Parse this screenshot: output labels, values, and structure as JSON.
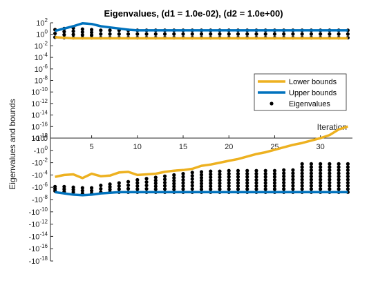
{
  "chart_data": {
    "type": "line",
    "title": "Eigenvalues, (d1 = 1.0e-02), (d2 = 1.0e+00)",
    "xlabel": "Iteration",
    "ylabel": "Eigenvalues and bounds",
    "xlim": [
      0.5,
      33.5
    ],
    "x_ticks": [
      5,
      10,
      15,
      20,
      25,
      30
    ],
    "y_positive_ticks": [
      "10^2",
      "10^0",
      "10^-2",
      "10^-4",
      "10^-6",
      "10^-8",
      "10^-10",
      "10^-12",
      "10^-14",
      "10^-16",
      "10^-18"
    ],
    "y_zero_tick": "0",
    "y_negative_ticks": [
      "-10^-18",
      "-10^-16",
      "-10^-14",
      "-10^-12",
      "-10^-10",
      "-10^-8",
      "-10^-6",
      "-10^-4",
      "-10^-2",
      "-10^0",
      "-10^2"
    ],
    "y_scale": "symmetric-log (positive branch above 0, negative branch below 0)",
    "legend": {
      "placement": "right",
      "entries": [
        "Lower bounds",
        "Upper bounds",
        "Eigenvalues"
      ]
    },
    "colors": {
      "lower": "#EDB120",
      "upper": "#0072BD",
      "eig": "#000000"
    },
    "series": [
      {
        "name": "Lower bounds",
        "x": [
          1,
          2,
          3,
          4,
          5,
          6,
          7,
          8,
          9,
          10,
          11,
          12,
          13,
          14,
          15,
          16,
          17,
          18,
          19,
          20,
          21,
          22,
          23,
          24,
          25,
          26,
          27,
          28,
          29,
          30,
          31,
          32,
          33
        ],
        "positive_log10": [
          -0.5,
          -0.6,
          -0.7,
          -0.7,
          -0.7,
          -0.7,
          -0.7,
          -0.7,
          -0.7,
          -0.7,
          -0.7,
          -0.7,
          -0.7,
          -0.7,
          -0.7,
          -0.7,
          -0.7,
          -0.7,
          -0.7,
          -0.7,
          -0.7,
          -0.7,
          -0.7,
          -0.7,
          -0.7,
          -0.7,
          -0.7,
          -0.7,
          -0.7,
          -0.7,
          -0.7,
          -0.7,
          -0.7
        ],
        "negative_log10": [
          -4.3,
          -4.0,
          -3.9,
          -4.5,
          -3.8,
          -4.2,
          -4.1,
          -3.6,
          -3.5,
          -4.0,
          -3.9,
          -3.8,
          -3.5,
          -3.3,
          -3.2,
          -3.0,
          -2.5,
          -2.3,
          -2.0,
          -1.7,
          -1.4,
          -1.0,
          -0.6,
          -0.3,
          0.1,
          0.5,
          0.9,
          1.2,
          1.6,
          2.0,
          2.5,
          3.4,
          3.9
        ]
      },
      {
        "name": "Upper bounds",
        "x": [
          1,
          2,
          3,
          4,
          5,
          6,
          7,
          8,
          9,
          10,
          11,
          12,
          13,
          14,
          15,
          16,
          17,
          18,
          19,
          20,
          21,
          22,
          23,
          24,
          25,
          26,
          27,
          28,
          29,
          30,
          31,
          32,
          33
        ],
        "positive_log10": [
          0.6,
          1.0,
          1.4,
          1.9,
          1.8,
          1.4,
          1.2,
          1.0,
          0.8,
          0.7,
          0.7,
          0.7,
          0.7,
          0.7,
          0.7,
          0.7,
          0.7,
          0.7,
          0.7,
          0.7,
          0.7,
          0.7,
          0.7,
          0.7,
          0.7,
          0.7,
          0.7,
          0.7,
          0.7,
          0.7,
          0.7,
          0.7,
          0.7
        ],
        "negative_log10": [
          -6.8,
          -7.0,
          -7.2,
          -7.3,
          -7.2,
          -7.0,
          -6.9,
          -6.8,
          -6.8,
          -6.8,
          -6.8,
          -6.8,
          -6.8,
          -6.8,
          -6.8,
          -6.8,
          -6.8,
          -6.8,
          -6.8,
          -6.8,
          -6.8,
          -6.8,
          -6.8,
          -6.8,
          -6.8,
          -6.8,
          -6.8,
          -6.8,
          -6.8,
          -6.8,
          -6.8,
          -6.8,
          -6.8
        ]
      },
      {
        "name": "Eigenvalues",
        "x": [
          1,
          2,
          3,
          4,
          5,
          6,
          7,
          8,
          9,
          10,
          11,
          12,
          13,
          14,
          15,
          16,
          17,
          18,
          19,
          20,
          21,
          22,
          23,
          24,
          25,
          26,
          27,
          28,
          29,
          30,
          31,
          32,
          33
        ],
        "positive_log10_range": [
          [
            -0.5,
            0.8
          ],
          [
            -0.6,
            1.0
          ],
          [
            -0.6,
            1.1
          ],
          [
            -0.6,
            0.9
          ],
          [
            -0.6,
            0.8
          ],
          [
            -0.6,
            0.7
          ],
          [
            -0.6,
            0.7
          ],
          [
            -0.6,
            0.7
          ],
          [
            -0.6,
            0.7
          ],
          [
            -0.6,
            0.7
          ],
          [
            -0.6,
            0.7
          ],
          [
            -0.6,
            0.7
          ],
          [
            -0.6,
            0.7
          ],
          [
            -0.6,
            0.7
          ],
          [
            -0.6,
            0.7
          ],
          [
            -0.6,
            0.7
          ],
          [
            -0.6,
            0.7
          ],
          [
            -0.6,
            0.7
          ],
          [
            -0.6,
            0.7
          ],
          [
            -0.6,
            0.7
          ],
          [
            -0.6,
            0.7
          ],
          [
            -0.6,
            0.7
          ],
          [
            -0.6,
            0.7
          ],
          [
            -0.6,
            0.7
          ],
          [
            -0.6,
            0.7
          ],
          [
            -0.6,
            0.7
          ],
          [
            -0.6,
            0.7
          ],
          [
            -0.6,
            0.7
          ],
          [
            -0.6,
            0.7
          ],
          [
            -0.6,
            0.7
          ],
          [
            -0.6,
            0.7
          ],
          [
            -0.6,
            0.7
          ],
          [
            -0.6,
            0.7
          ]
        ],
        "negative_log10_range": [
          [
            -6.6,
            -5.9
          ],
          [
            -6.7,
            -5.9
          ],
          [
            -6.8,
            -6.0
          ],
          [
            -7.0,
            -6.1
          ],
          [
            -7.0,
            -6.1
          ],
          [
            -6.8,
            -5.7
          ],
          [
            -6.8,
            -5.5
          ],
          [
            -6.8,
            -5.3
          ],
          [
            -6.8,
            -5.1
          ],
          [
            -6.8,
            -4.8
          ],
          [
            -6.8,
            -4.6
          ],
          [
            -6.8,
            -4.4
          ],
          [
            -6.8,
            -4.2
          ],
          [
            -6.8,
            -4.0
          ],
          [
            -6.8,
            -3.8
          ],
          [
            -6.8,
            -3.6
          ],
          [
            -6.8,
            -3.5
          ],
          [
            -6.8,
            -3.4
          ],
          [
            -6.8,
            -3.4
          ],
          [
            -6.8,
            -3.3
          ],
          [
            -6.8,
            -3.3
          ],
          [
            -6.8,
            -3.3
          ],
          [
            -6.8,
            -3.3
          ],
          [
            -6.8,
            -3.3
          ],
          [
            -6.8,
            -3.3
          ],
          [
            -6.8,
            -3.2
          ],
          [
            -6.8,
            -3.2
          ],
          [
            -6.8,
            -2.2
          ],
          [
            -6.8,
            -2.2
          ],
          [
            -6.8,
            -2.2
          ],
          [
            -6.8,
            -2.2
          ],
          [
            -6.8,
            -2.2
          ],
          [
            -6.8,
            -2.2
          ]
        ]
      }
    ]
  }
}
